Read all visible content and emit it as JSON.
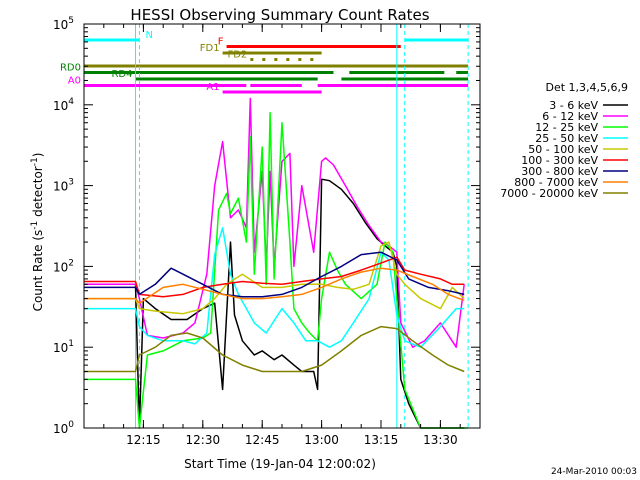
{
  "chart_data": {
    "type": "line",
    "title": "HESSI Observing Summary Count Rates",
    "xlabel": "Start Time (19-Jan-04 12:00:02)",
    "ylabel": "Count Rate (s",
    "ylabel_sup1": "-1",
    "ylabel_mid": " detector",
    "ylabel_sup2": "-1",
    "ylabel_end": ")",
    "ylog": true,
    "xlim": [
      "12:00",
      "13:40"
    ],
    "ylim": [
      1,
      100000
    ],
    "x_ticks": [
      "12:15",
      "12:30",
      "12:45",
      "13:00",
      "13:15",
      "13:30"
    ],
    "y_ticks": [
      {
        "base": "10",
        "exp": "0",
        "value": 1
      },
      {
        "base": "10",
        "exp": "1",
        "value": 10
      },
      {
        "base": "10",
        "exp": "2",
        "value": 100
      },
      {
        "base": "10",
        "exp": "3",
        "value": 1000
      },
      {
        "base": "10",
        "exp": "4",
        "value": 10000
      },
      {
        "base": "10",
        "exp": "5",
        "value": 100000
      }
    ],
    "legend_title": "Det 1,3,4,5,6,9",
    "legend_placement": "right",
    "vertical_lines": {
      "color": "#00ffff",
      "solid": [
        "12:13",
        "13:19"
      ],
      "dashed": [
        "12:14",
        "13:21",
        "13:37"
      ]
    },
    "flags": [
      {
        "label": "N",
        "color": "#00ffff",
        "level": 1,
        "segments": [
          [
            "12:00",
            "12:14"
          ],
          [
            "13:21",
            "13:37"
          ]
        ]
      },
      {
        "label": "F",
        "color": "#ff0000",
        "level": 2,
        "segments": [
          [
            "12:36",
            "13:20"
          ]
        ]
      },
      {
        "label": "FD1",
        "color": "#808000",
        "level": 3,
        "segments": [
          [
            "12:35",
            "13:00"
          ]
        ]
      },
      {
        "label": "FD2",
        "color": "#808000",
        "level": 4,
        "segments": [
          [
            "12:42",
            "13:00"
          ]
        ]
      },
      {
        "label": "",
        "color": "#808000",
        "level": 5,
        "segments": [
          [
            "12:00",
            "13:37"
          ]
        ]
      },
      {
        "label": "RD0",
        "color": "#008000",
        "level": 6,
        "segments": [
          [
            "12:00",
            "13:03"
          ],
          [
            "13:07",
            "13:31"
          ],
          [
            "13:34",
            "13:37"
          ]
        ]
      },
      {
        "label": "RD4",
        "color": "#008000",
        "level": 7,
        "segments": [
          [
            "12:13",
            "12:59"
          ],
          [
            "13:05",
            "13:37"
          ]
        ]
      },
      {
        "label": "A0",
        "color": "#ff00ff",
        "level": 8,
        "segments": [
          [
            "12:00",
            "12:41"
          ],
          [
            "12:42",
            "12:55"
          ],
          [
            "12:59",
            "13:37"
          ]
        ]
      },
      {
        "label": "A1",
        "color": "#ff00ff",
        "level": 9,
        "segments": [
          [
            "12:35",
            "13:00"
          ]
        ]
      }
    ],
    "series": [
      {
        "name": "3 - 6 keV",
        "color": "#000000",
        "points": [
          [
            "12:00",
            60
          ],
          [
            "12:10",
            60
          ],
          [
            "12:13",
            60
          ],
          [
            "12:14",
            1
          ],
          [
            "12:15",
            40
          ],
          [
            "12:18",
            30
          ],
          [
            "12:22",
            22
          ],
          [
            "12:26",
            22
          ],
          [
            "12:30",
            30
          ],
          [
            "12:33",
            35
          ],
          [
            "12:35",
            3
          ],
          [
            "12:37",
            200
          ],
          [
            "12:38",
            25
          ],
          [
            "12:40",
            12
          ],
          [
            "12:43",
            8
          ],
          [
            "12:45",
            9
          ],
          [
            "12:48",
            7
          ],
          [
            "12:50",
            8
          ],
          [
            "12:53",
            6
          ],
          [
            "12:55",
            5
          ],
          [
            "12:58",
            5
          ],
          [
            "12:59",
            3
          ],
          [
            "13:00",
            1200
          ],
          [
            "13:02",
            1150
          ],
          [
            "13:05",
            900
          ],
          [
            "13:08",
            600
          ],
          [
            "13:11",
            350
          ],
          [
            "13:14",
            220
          ],
          [
            "13:16",
            180
          ],
          [
            "13:18",
            150
          ],
          [
            "13:19",
            100
          ],
          [
            "13:20",
            4
          ],
          [
            "13:22",
            2
          ],
          [
            "13:25",
            1
          ],
          [
            "13:30",
            1
          ],
          [
            "13:36",
            1
          ]
        ]
      },
      {
        "name": "6 - 12 keV",
        "color": "#ff00ff",
        "points": [
          [
            "12:00",
            60
          ],
          [
            "12:10",
            60
          ],
          [
            "12:13",
            60
          ],
          [
            "12:14",
            40
          ],
          [
            "12:16",
            14
          ],
          [
            "12:20",
            13
          ],
          [
            "12:25",
            15
          ],
          [
            "12:28",
            20
          ],
          [
            "12:31",
            80
          ],
          [
            "12:33",
            1000
          ],
          [
            "12:35",
            3500
          ],
          [
            "12:37",
            400
          ],
          [
            "12:39",
            500
          ],
          [
            "12:41",
            300
          ],
          [
            "12:42",
            12000
          ],
          [
            "12:43",
            150
          ],
          [
            "12:45",
            1500
          ],
          [
            "12:46",
            100
          ],
          [
            "12:47",
            1500
          ],
          [
            "12:48",
            100
          ],
          [
            "12:50",
            2000
          ],
          [
            "12:52",
            2500
          ],
          [
            "12:53",
            100
          ],
          [
            "12:55",
            1000
          ],
          [
            "12:58",
            150
          ],
          [
            "13:00",
            2000
          ],
          [
            "13:01",
            2200
          ],
          [
            "13:03",
            1800
          ],
          [
            "13:06",
            1000
          ],
          [
            "13:09",
            550
          ],
          [
            "13:12",
            320
          ],
          [
            "13:15",
            200
          ],
          [
            "13:17",
            180
          ],
          [
            "13:19",
            150
          ],
          [
            "13:20",
            20
          ],
          [
            "13:23",
            10
          ],
          [
            "13:26",
            12
          ],
          [
            "13:30",
            20
          ],
          [
            "13:34",
            10
          ],
          [
            "13:36",
            60
          ]
        ]
      },
      {
        "name": "12 - 25 keV",
        "color": "#00ff00",
        "points": [
          [
            "12:00",
            4
          ],
          [
            "12:13",
            4
          ],
          [
            "12:14",
            1
          ],
          [
            "12:16",
            8
          ],
          [
            "12:20",
            9
          ],
          [
            "12:25",
            12
          ],
          [
            "12:30",
            13
          ],
          [
            "12:32",
            15
          ],
          [
            "12:34",
            500
          ],
          [
            "12:36",
            800
          ],
          [
            "12:37",
            450
          ],
          [
            "12:39",
            700
          ],
          [
            "12:41",
            200
          ],
          [
            "12:42",
            4000
          ],
          [
            "12:43",
            80
          ],
          [
            "12:45",
            3000
          ],
          [
            "12:46",
            60
          ],
          [
            "12:47",
            8000
          ],
          [
            "12:48",
            70
          ],
          [
            "12:50",
            6000
          ],
          [
            "12:52",
            200
          ],
          [
            "12:53",
            30
          ],
          [
            "12:55",
            20
          ],
          [
            "12:57",
            15
          ],
          [
            "12:59",
            12
          ],
          [
            "13:00",
            40
          ],
          [
            "13:02",
            150
          ],
          [
            "13:04",
            90
          ],
          [
            "13:06",
            60
          ],
          [
            "13:10",
            40
          ],
          [
            "13:14",
            60
          ],
          [
            "13:16",
            200
          ],
          [
            "13:18",
            150
          ],
          [
            "13:19",
            40
          ],
          [
            "13:21",
            3
          ],
          [
            "13:25",
            1
          ],
          [
            "13:37",
            1
          ]
        ]
      },
      {
        "name": "25 - 50 keV",
        "color": "#00ffff",
        "points": [
          [
            "12:00",
            30
          ],
          [
            "12:13",
            30
          ],
          [
            "12:14",
            18
          ],
          [
            "12:16",
            14
          ],
          [
            "12:20",
            12
          ],
          [
            "12:25",
            12
          ],
          [
            "12:28",
            11
          ],
          [
            "12:31",
            15
          ],
          [
            "12:33",
            140
          ],
          [
            "12:35",
            300
          ],
          [
            "12:37",
            80
          ],
          [
            "12:39",
            45
          ],
          [
            "12:41",
            30
          ],
          [
            "12:43",
            20
          ],
          [
            "12:46",
            15
          ],
          [
            "12:50",
            30
          ],
          [
            "12:53",
            20
          ],
          [
            "12:56",
            12
          ],
          [
            "12:59",
            12
          ],
          [
            "13:02",
            10
          ],
          [
            "13:05",
            12
          ],
          [
            "13:08",
            20
          ],
          [
            "13:12",
            40
          ],
          [
            "13:15",
            150
          ],
          [
            "13:17",
            120
          ],
          [
            "13:19",
            25
          ],
          [
            "13:21",
            12
          ],
          [
            "13:25",
            10
          ],
          [
            "13:30",
            18
          ],
          [
            "13:34",
            30
          ],
          [
            "13:36",
            30
          ]
        ]
      },
      {
        "name": "50 - 100 keV",
        "color": "#c8c800",
        "points": [
          [
            "12:00",
            40
          ],
          [
            "12:13",
            40
          ],
          [
            "12:14",
            30
          ],
          [
            "12:18",
            28
          ],
          [
            "12:25",
            26
          ],
          [
            "12:30",
            30
          ],
          [
            "12:33",
            40
          ],
          [
            "12:36",
            60
          ],
          [
            "12:40",
            80
          ],
          [
            "12:45",
            55
          ],
          [
            "12:50",
            55
          ],
          [
            "12:55",
            60
          ],
          [
            "13:00",
            60
          ],
          [
            "13:04",
            55
          ],
          [
            "13:08",
            52
          ],
          [
            "13:12",
            60
          ],
          [
            "13:15",
            180
          ],
          [
            "13:17",
            200
          ],
          [
            "13:19",
            80
          ],
          [
            "13:21",
            60
          ],
          [
            "13:25",
            40
          ],
          [
            "13:30",
            30
          ],
          [
            "13:33",
            55
          ],
          [
            "13:36",
            40
          ]
        ]
      },
      {
        "name": "100 - 300 keV",
        "color": "#ff0000",
        "points": [
          [
            "12:00",
            65
          ],
          [
            "12:13",
            65
          ],
          [
            "12:14",
            45
          ],
          [
            "12:20",
            42
          ],
          [
            "12:25",
            45
          ],
          [
            "12:30",
            55
          ],
          [
            "12:35",
            60
          ],
          [
            "12:40",
            65
          ],
          [
            "12:45",
            62
          ],
          [
            "12:50",
            60
          ],
          [
            "12:55",
            65
          ],
          [
            "13:00",
            70
          ],
          [
            "13:05",
            75
          ],
          [
            "13:10",
            90
          ],
          [
            "13:15",
            110
          ],
          [
            "13:19",
            130
          ],
          [
            "13:21",
            90
          ],
          [
            "13:25",
            80
          ],
          [
            "13:30",
            70
          ],
          [
            "13:33",
            60
          ],
          [
            "13:36",
            60
          ]
        ]
      },
      {
        "name": "300 - 800 keV",
        "color": "#000080",
        "points": [
          [
            "12:00",
            55
          ],
          [
            "12:13",
            55
          ],
          [
            "12:14",
            45
          ],
          [
            "12:18",
            60
          ],
          [
            "12:22",
            95
          ],
          [
            "12:25",
            80
          ],
          [
            "12:30",
            60
          ],
          [
            "12:35",
            45
          ],
          [
            "12:40",
            42
          ],
          [
            "12:45",
            42
          ],
          [
            "12:50",
            45
          ],
          [
            "12:55",
            55
          ],
          [
            "13:00",
            75
          ],
          [
            "13:05",
            100
          ],
          [
            "13:10",
            140
          ],
          [
            "13:15",
            150
          ],
          [
            "13:19",
            120
          ],
          [
            "13:22",
            70
          ],
          [
            "13:27",
            55
          ],
          [
            "13:32",
            50
          ],
          [
            "13:36",
            45
          ]
        ]
      },
      {
        "name": "800 - 7000 keV",
        "color": "#ff8000",
        "points": [
          [
            "12:00",
            40
          ],
          [
            "12:13",
            40
          ],
          [
            "12:14",
            35
          ],
          [
            "12:20",
            55
          ],
          [
            "12:25",
            60
          ],
          [
            "12:30",
            52
          ],
          [
            "12:35",
            45
          ],
          [
            "12:40",
            40
          ],
          [
            "12:45",
            40
          ],
          [
            "12:50",
            42
          ],
          [
            "12:55",
            45
          ],
          [
            "13:00",
            55
          ],
          [
            "13:05",
            70
          ],
          [
            "13:10",
            85
          ],
          [
            "13:15",
            95
          ],
          [
            "13:19",
            90
          ],
          [
            "13:23",
            75
          ],
          [
            "13:28",
            60
          ],
          [
            "13:32",
            45
          ],
          [
            "13:36",
            38
          ]
        ]
      },
      {
        "name": "7000 - 20000 keV",
        "color": "#808000",
        "points": [
          [
            "12:00",
            5
          ],
          [
            "12:13",
            5
          ],
          [
            "12:14",
            8
          ],
          [
            "12:18",
            10
          ],
          [
            "12:22",
            14
          ],
          [
            "12:26",
            15
          ],
          [
            "12:30",
            13
          ],
          [
            "12:35",
            8
          ],
          [
            "12:40",
            6
          ],
          [
            "12:45",
            5
          ],
          [
            "12:50",
            5
          ],
          [
            "12:55",
            5
          ],
          [
            "13:00",
            6
          ],
          [
            "13:05",
            9
          ],
          [
            "13:10",
            14
          ],
          [
            "13:15",
            18
          ],
          [
            "13:19",
            17
          ],
          [
            "13:23",
            12
          ],
          [
            "13:28",
            8
          ],
          [
            "13:32",
            6
          ],
          [
            "13:36",
            5
          ]
        ]
      }
    ]
  },
  "footer": {
    "date": "24-Mar-2010 00:03"
  }
}
